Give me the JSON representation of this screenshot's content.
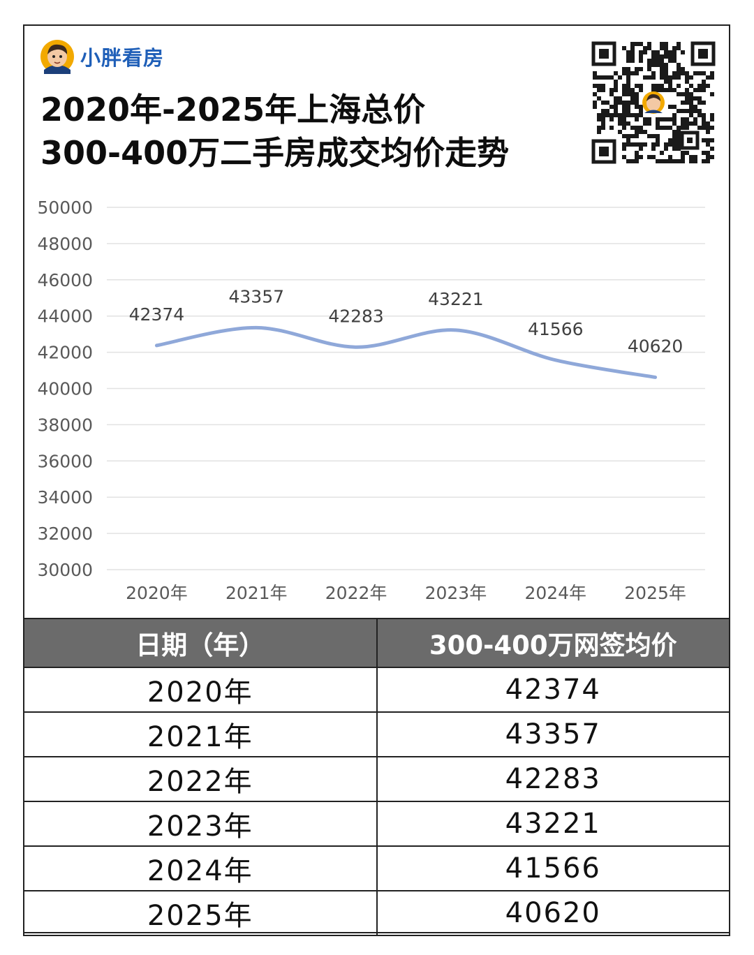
{
  "brand": {
    "name": "小胖看房"
  },
  "title": {
    "line1": "2020年-2025年上海总价",
    "line2": "300-400万二手房成交均价走势"
  },
  "colors": {
    "line": "#8fa8d9",
    "header_bg": "#6b6b6b",
    "brand": "#1f5fb8",
    "grid": "#e2e2e2"
  },
  "chart_data": {
    "type": "line",
    "categories": [
      "2020年",
      "2021年",
      "2022年",
      "2023年",
      "2024年",
      "2025年"
    ],
    "series": [
      {
        "values": [
          42374,
          43357,
          42283,
          43221,
          41566,
          40620
        ]
      }
    ],
    "y_ticks": [
      "50000",
      "48000",
      "46000",
      "44000",
      "42000",
      "40000",
      "38000",
      "36000",
      "34000",
      "32000",
      "30000"
    ],
    "ylim": [
      30000,
      50000
    ],
    "grid": true,
    "smooth": true,
    "data_labels": true,
    "legend": "none"
  },
  "table": {
    "headers": [
      "日期（年）",
      "300-400万网签均价"
    ],
    "rows": [
      [
        "2020年",
        "42374"
      ],
      [
        "2021年",
        "43357"
      ],
      [
        "2022年",
        "42283"
      ],
      [
        "2023年",
        "43221"
      ],
      [
        "2024年",
        "41566"
      ],
      [
        "2025年",
        "40620"
      ]
    ]
  }
}
